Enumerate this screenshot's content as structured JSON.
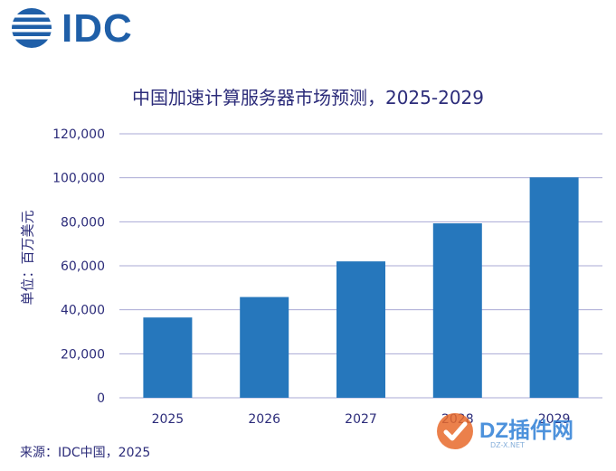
{
  "brand": {
    "logo_text": "IDC"
  },
  "watermark": {
    "text": "DZ插件网",
    "sub": "DZ-X.NET"
  },
  "source": "来源：IDC中国，2025",
  "colors": {
    "bar": "#2677bc",
    "grid": "#a9a9d4",
    "axis_text": "#2c2c7a",
    "brand": "#1f5fa8"
  },
  "chart_data": {
    "type": "bar",
    "title": "中国加速计算服务器市场预测，2025-2029",
    "xlabel": "",
    "ylabel": "单位：百万美元",
    "categories": [
      "2025",
      "2026",
      "2027",
      "2028",
      "2029"
    ],
    "values": [
      36500,
      45800,
      62000,
      79300,
      100200
    ],
    "ylim": [
      0,
      120000
    ],
    "yticks": [
      "0",
      "20,000",
      "40,000",
      "60,000",
      "80,000",
      "100,000",
      "120,000"
    ],
    "ytick_values": [
      0,
      20000,
      40000,
      60000,
      80000,
      100000,
      120000
    ],
    "grid": true,
    "legend": "none"
  }
}
